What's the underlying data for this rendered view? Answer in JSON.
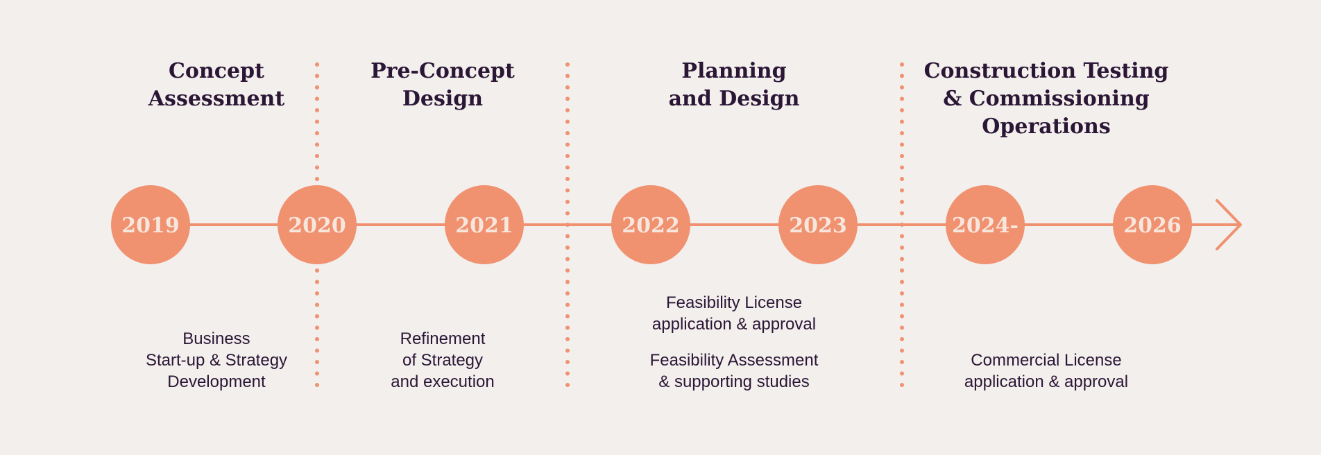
{
  "colors": {
    "background": "#f2efec",
    "accent": "#f09170",
    "text": "#2b1636",
    "year_text": "#f7e6dc"
  },
  "phases": [
    {
      "title_lines": [
        "Concept",
        "Assessment"
      ]
    },
    {
      "title_lines": [
        "Pre-Concept",
        "Design"
      ]
    },
    {
      "title_lines": [
        "Planning",
        "and Design"
      ]
    },
    {
      "title_lines": [
        "Construction Testing",
        "& Commissioning",
        "Operations"
      ]
    }
  ],
  "years": [
    "2019",
    "2020",
    "2021",
    "2022",
    "2023",
    "2024-",
    "2026"
  ],
  "descriptions": [
    {
      "lines": [
        "Business",
        "Start-up & Strategy",
        "Development"
      ]
    },
    {
      "lines": [
        "Refinement",
        "of Strategy",
        "and execution"
      ]
    },
    {
      "lines": [
        "Feasibility License",
        "application & approval"
      ]
    },
    {
      "lines": [
        "Feasibility Assessment",
        "& supporting studies"
      ]
    },
    {
      "lines": [
        "Commercial License",
        "application & approval"
      ]
    }
  ],
  "timeline": {
    "arrow": "arrow-right-icon"
  }
}
